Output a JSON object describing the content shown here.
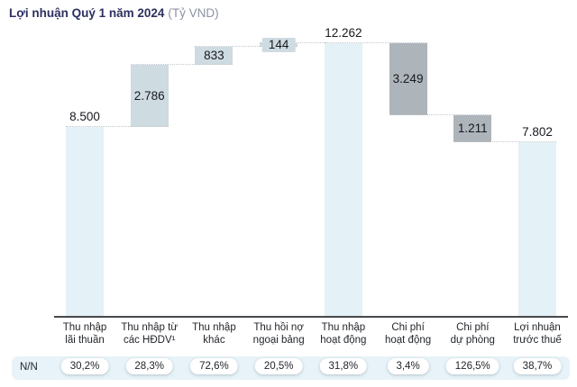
{
  "header": {
    "title": "Lợi nhuận Quý 1 năm 2024",
    "unit": "(Tỷ VND)"
  },
  "chart_data": {
    "type": "waterfall",
    "title": "Lợi nhuận Quý 1 năm 2024",
    "unit_label": "(Tỷ VND)",
    "ylim": [
      0,
      12262
    ],
    "grid": false,
    "yoy_row_label": "N/N",
    "colors": {
      "total": "#e4f1f7",
      "increase": "#cedbe1",
      "decrease": "#adb4ba"
    },
    "steps": [
      {
        "label_lines": [
          "Thu nhập",
          "lãi thuần"
        ],
        "value": 8500,
        "display": "8.500",
        "kind": "total",
        "label_pos": "above",
        "yoy": "30,2%"
      },
      {
        "label_lines": [
          "Thu nhập từ",
          "các HĐDV¹"
        ],
        "value": 2786,
        "display": "2.786",
        "kind": "increase",
        "label_pos": "inside",
        "yoy": "28,3%"
      },
      {
        "label_lines": [
          "Thu nhập",
          "khác"
        ],
        "value": 833,
        "display": "833",
        "kind": "increase",
        "label_pos": "inside",
        "yoy": "72,6%"
      },
      {
        "label_lines": [
          "Thu hồi nợ",
          "ngoại bảng"
        ],
        "value": 144,
        "display": "144",
        "kind": "increase",
        "label_pos": "chip",
        "yoy": "20,5%"
      },
      {
        "label_lines": [
          "Thu nhập",
          "hoạt động"
        ],
        "value": 12262,
        "display": "12.262",
        "kind": "total",
        "label_pos": "above",
        "yoy": "31,8%"
      },
      {
        "label_lines": [
          "Chi phí",
          "hoạt động"
        ],
        "value": 3249,
        "display": "3.249",
        "kind": "decrease",
        "label_pos": "inside",
        "yoy": "3,4%"
      },
      {
        "label_lines": [
          "Chi phí",
          "dự phòng"
        ],
        "value": 1211,
        "display": "1.211",
        "kind": "decrease",
        "label_pos": "inside",
        "yoy": "126,5%"
      },
      {
        "label_lines": [
          "Lợi nhuận",
          "trước thuế"
        ],
        "value": 7802,
        "display": "7.802",
        "kind": "total",
        "label_pos": "above",
        "yoy": "38,7%"
      }
    ]
  }
}
